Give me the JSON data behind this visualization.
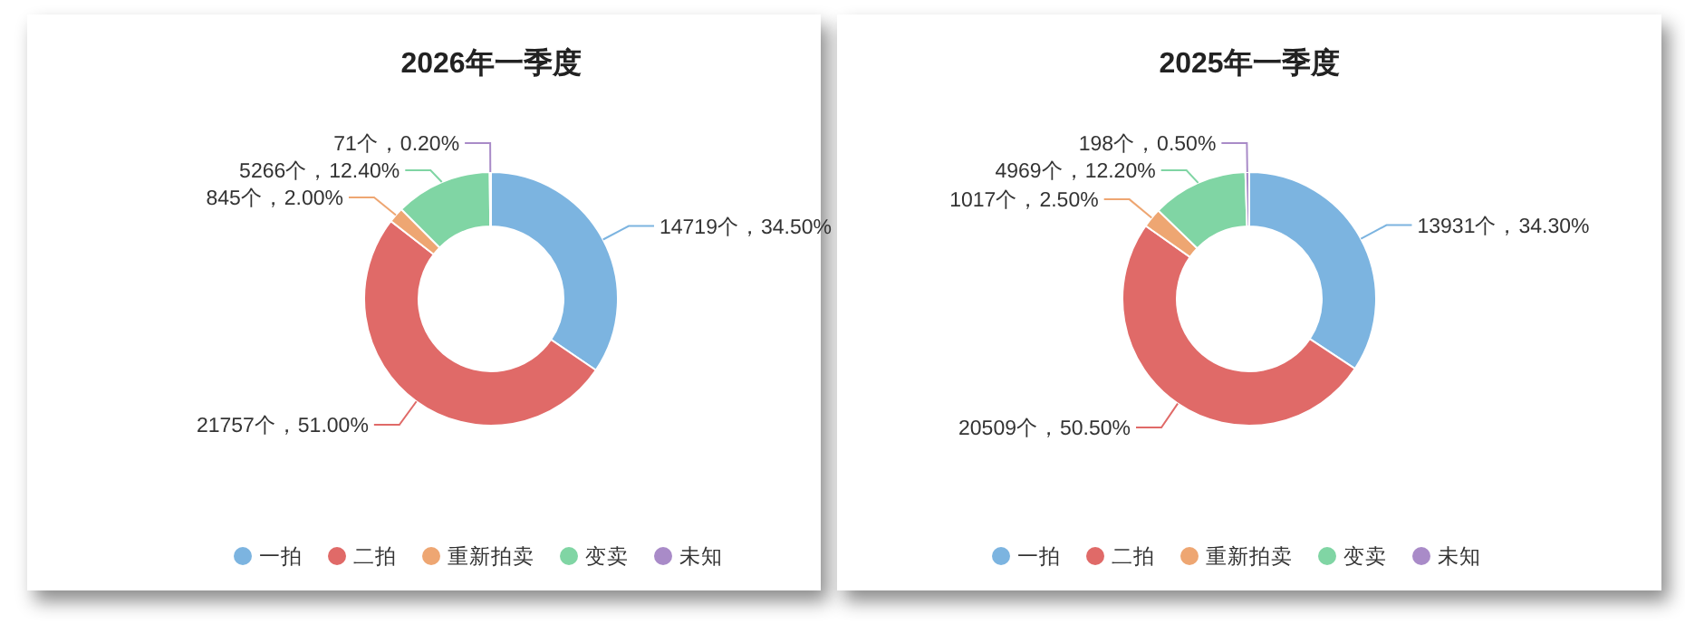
{
  "chart_data": [
    {
      "type": "donut",
      "title": "2026年一季度",
      "categories": [
        "一拍",
        "二拍",
        "重新拍卖",
        "变卖",
        "未知"
      ],
      "values": [
        14719,
        21757,
        845,
        5266,
        71
      ],
      "value_labels": [
        "14719个，34.50%",
        "21757个，51.00%",
        "845个，2.00%",
        "5266个，12.40%",
        "71个，0.20%"
      ],
      "colors": [
        "#7cb4e0",
        "#e06a68",
        "#eea672",
        "#80d5a4",
        "#a98bc8"
      ],
      "legend": "bottom"
    },
    {
      "type": "donut",
      "title": "2025年一季度",
      "categories": [
        "一拍",
        "二拍",
        "重新拍卖",
        "变卖",
        "未知"
      ],
      "values": [
        13931,
        20509,
        1017,
        4969,
        198
      ],
      "value_labels": [
        "13931个，34.30%",
        "20509个，50.50%",
        "1017个，2.50%",
        "4969个，12.20%",
        "198个，0.50%"
      ],
      "colors": [
        "#7cb4e0",
        "#e06a68",
        "#eea672",
        "#80d5a4",
        "#a98bc8"
      ],
      "legend": "bottom"
    }
  ]
}
